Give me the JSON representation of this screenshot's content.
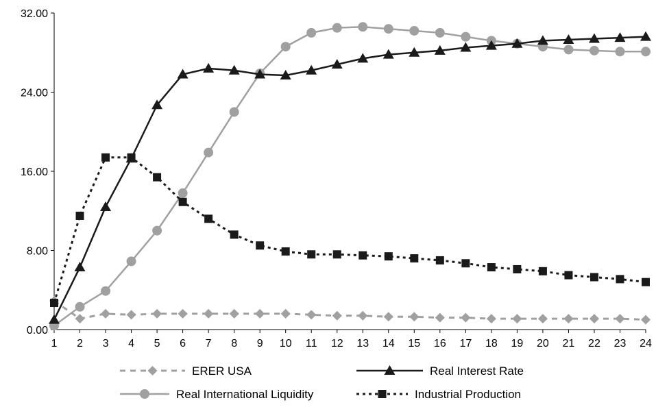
{
  "chart_data": {
    "type": "line",
    "x": [
      1,
      2,
      3,
      4,
      5,
      6,
      7,
      8,
      9,
      10,
      11,
      12,
      13,
      14,
      15,
      16,
      17,
      18,
      19,
      20,
      21,
      22,
      23,
      24
    ],
    "y_ticks": [
      "0.00",
      "8.00",
      "16.00",
      "24.00",
      "32.00"
    ],
    "ylim": [
      0,
      32
    ],
    "grid": false,
    "legend_position": "bottom",
    "series": [
      {
        "name": "ERER USA",
        "color": "#a0a0a0",
        "line": "dashed",
        "marker": "diamond",
        "values": [
          2.9,
          1.1,
          1.6,
          1.5,
          1.6,
          1.6,
          1.6,
          1.6,
          1.6,
          1.6,
          1.5,
          1.4,
          1.4,
          1.3,
          1.3,
          1.2,
          1.2,
          1.1,
          1.1,
          1.1,
          1.1,
          1.1,
          1.1,
          1.0
        ]
      },
      {
        "name": "Real Interest Rate",
        "color": "#1a1a1a",
        "line": "solid",
        "marker": "triangle",
        "values": [
          1.0,
          6.3,
          12.4,
          17.3,
          22.7,
          25.8,
          26.4,
          26.2,
          25.8,
          25.7,
          26.2,
          26.8,
          27.4,
          27.8,
          28.0,
          28.2,
          28.5,
          28.7,
          28.9,
          29.2,
          29.3,
          29.4,
          29.5,
          29.6
        ]
      },
      {
        "name": "Real International Liquidity",
        "color": "#a0a0a0",
        "line": "solid",
        "marker": "circle",
        "values": [
          0.4,
          2.3,
          3.9,
          6.9,
          10.0,
          13.8,
          17.9,
          22.0,
          25.9,
          28.6,
          30.0,
          30.5,
          30.6,
          30.4,
          30.2,
          30.0,
          29.6,
          29.2,
          28.9,
          28.6,
          28.3,
          28.2,
          28.1,
          28.1
        ]
      },
      {
        "name": "Industrial Production",
        "color": "#1a1a1a",
        "line": "dotted",
        "marker": "square",
        "values": [
          2.7,
          11.5,
          17.4,
          17.4,
          15.4,
          12.9,
          11.2,
          9.6,
          8.5,
          7.9,
          7.6,
          7.6,
          7.5,
          7.4,
          7.2,
          7.0,
          6.7,
          6.3,
          6.1,
          5.9,
          5.5,
          5.3,
          5.1,
          4.8
        ]
      }
    ]
  }
}
